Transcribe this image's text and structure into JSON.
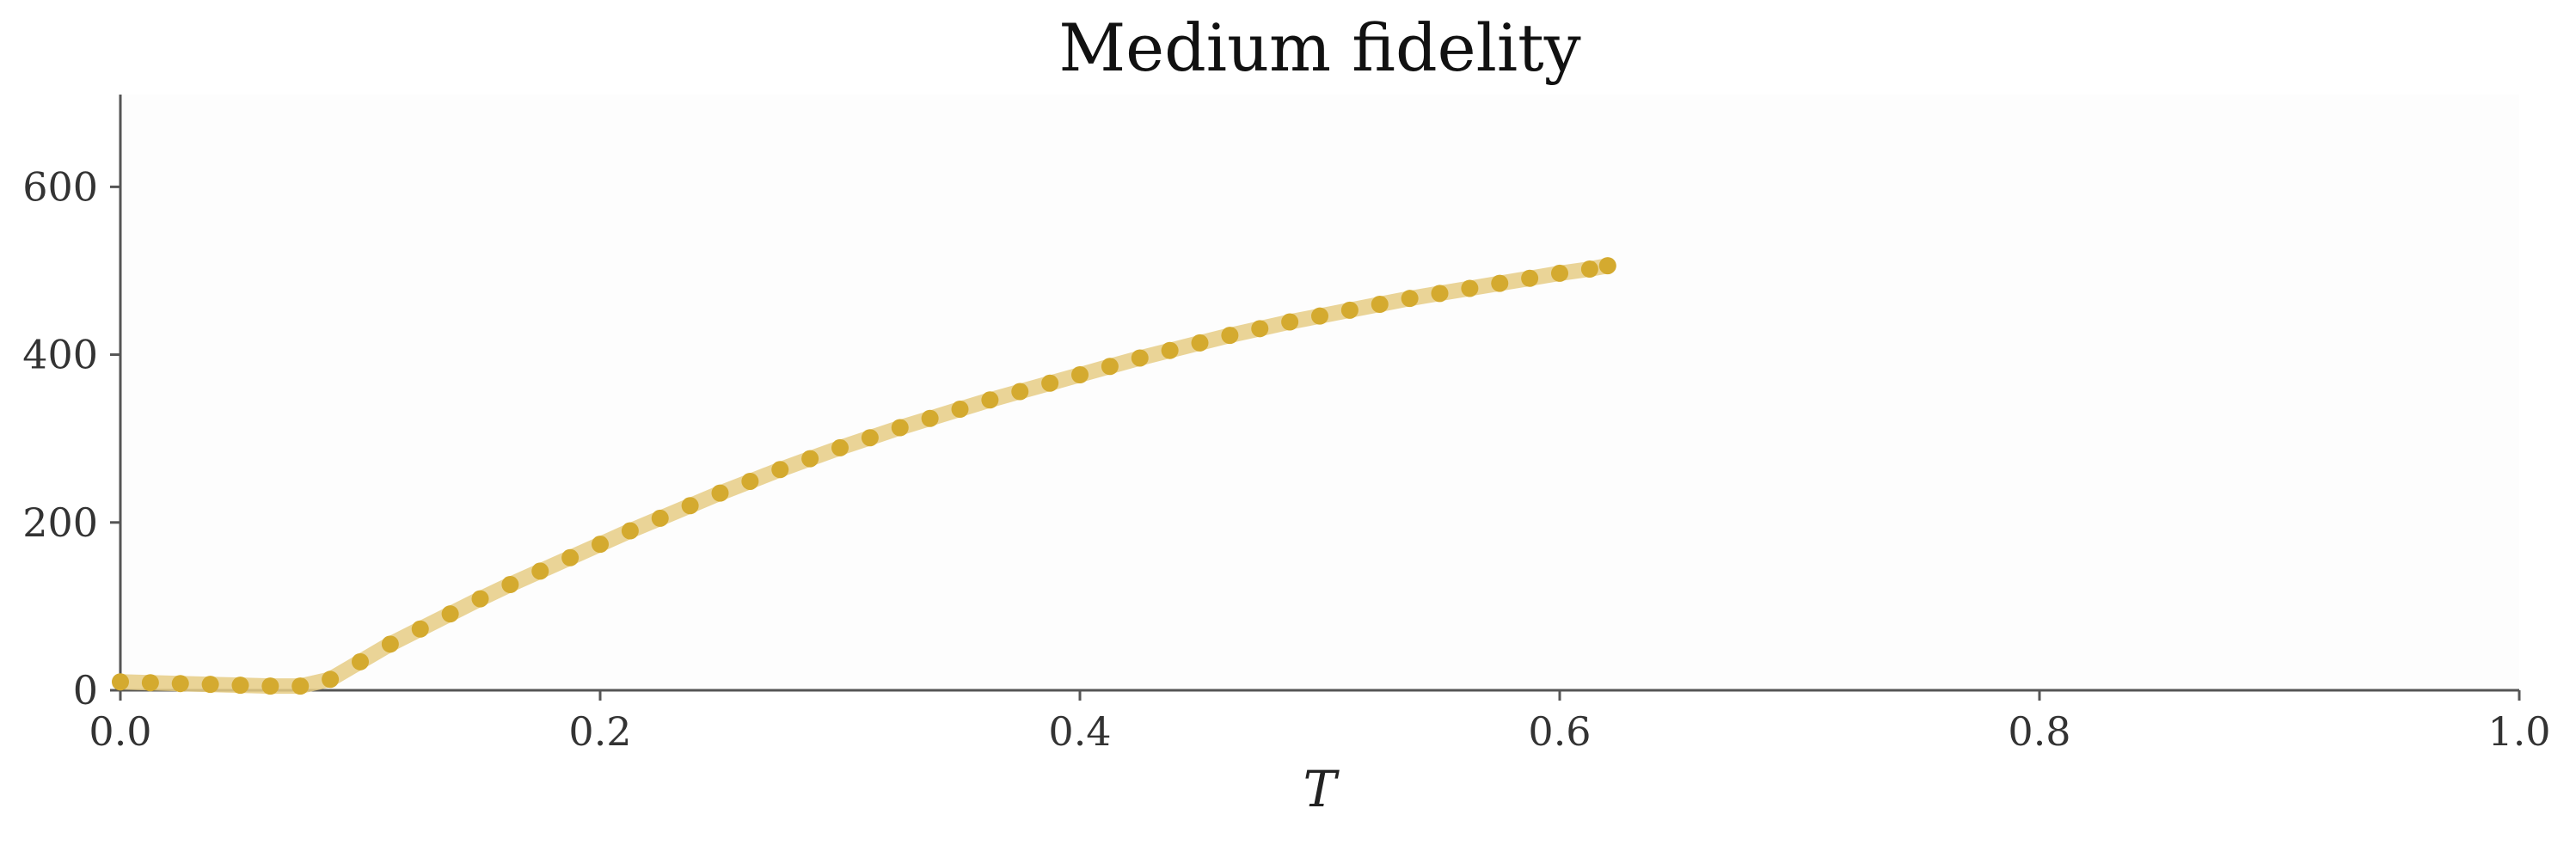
{
  "chart_data": {
    "type": "line",
    "title": "Medium fidelity",
    "xlabel": "T",
    "ylabel": "",
    "xlim": [
      0.0,
      1.0
    ],
    "ylim": [
      0,
      710
    ],
    "x_ticks": [
      "0.0",
      "0.2",
      "0.4",
      "0.6",
      "0.8",
      "1.0"
    ],
    "x_tick_values": [
      0.0,
      0.2,
      0.4,
      0.6,
      0.8,
      1.0
    ],
    "y_ticks": [
      "0",
      "200",
      "400",
      "600"
    ],
    "y_tick_values": [
      0,
      200,
      400,
      600
    ],
    "grid": false,
    "legend": "none",
    "colors": {
      "marker": "#D4AA2F",
      "line": "#E6CD85",
      "axis": "#555555",
      "plot_bg": "#FDFDFD"
    },
    "series": [
      {
        "x": [
          0.0,
          0.0125,
          0.025,
          0.0375,
          0.05,
          0.0625,
          0.075,
          0.0875,
          0.1,
          0.1125,
          0.125,
          0.1375,
          0.15,
          0.1625,
          0.175,
          0.1875,
          0.2,
          0.2125,
          0.225,
          0.2375,
          0.25,
          0.2625,
          0.275,
          0.2875,
          0.3,
          0.3125,
          0.325,
          0.3375,
          0.35,
          0.3625,
          0.375,
          0.3875,
          0.4,
          0.4125,
          0.425,
          0.4375,
          0.45,
          0.4625,
          0.475,
          0.4875,
          0.5,
          0.5125,
          0.525,
          0.5375,
          0.55,
          0.5625,
          0.575,
          0.5875,
          0.6,
          0.6125,
          0.62
        ],
        "y": [
          10,
          9,
          8,
          7,
          6,
          5,
          5,
          13,
          34,
          55,
          73,
          91,
          109,
          126,
          142,
          158,
          174,
          190,
          205,
          220,
          235,
          249,
          263,
          276,
          289,
          301,
          313,
          324,
          335,
          346,
          356,
          366,
          376,
          386,
          396,
          405,
          414,
          423,
          431,
          439,
          446,
          453,
          460,
          467,
          473,
          479,
          485,
          491,
          497,
          502,
          506
        ]
      }
    ]
  }
}
